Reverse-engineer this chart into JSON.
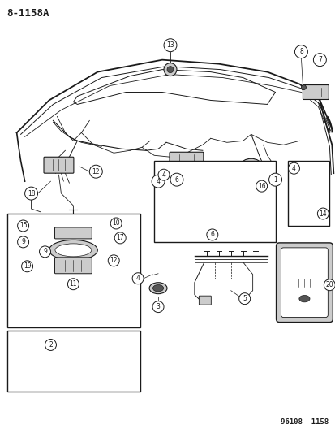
{
  "title_code": "8-1158A",
  "footer_code": "96108  1158",
  "bg_color": "#ffffff",
  "line_color": "#1a1a1a",
  "fig_width": 4.14,
  "fig_height": 5.33,
  "dpi": 100,
  "title_fontsize": 9,
  "footer_fontsize": 6.5,
  "gray_fill": "#aaaaaa",
  "light_gray": "#cccccc",
  "dark_gray": "#555555"
}
